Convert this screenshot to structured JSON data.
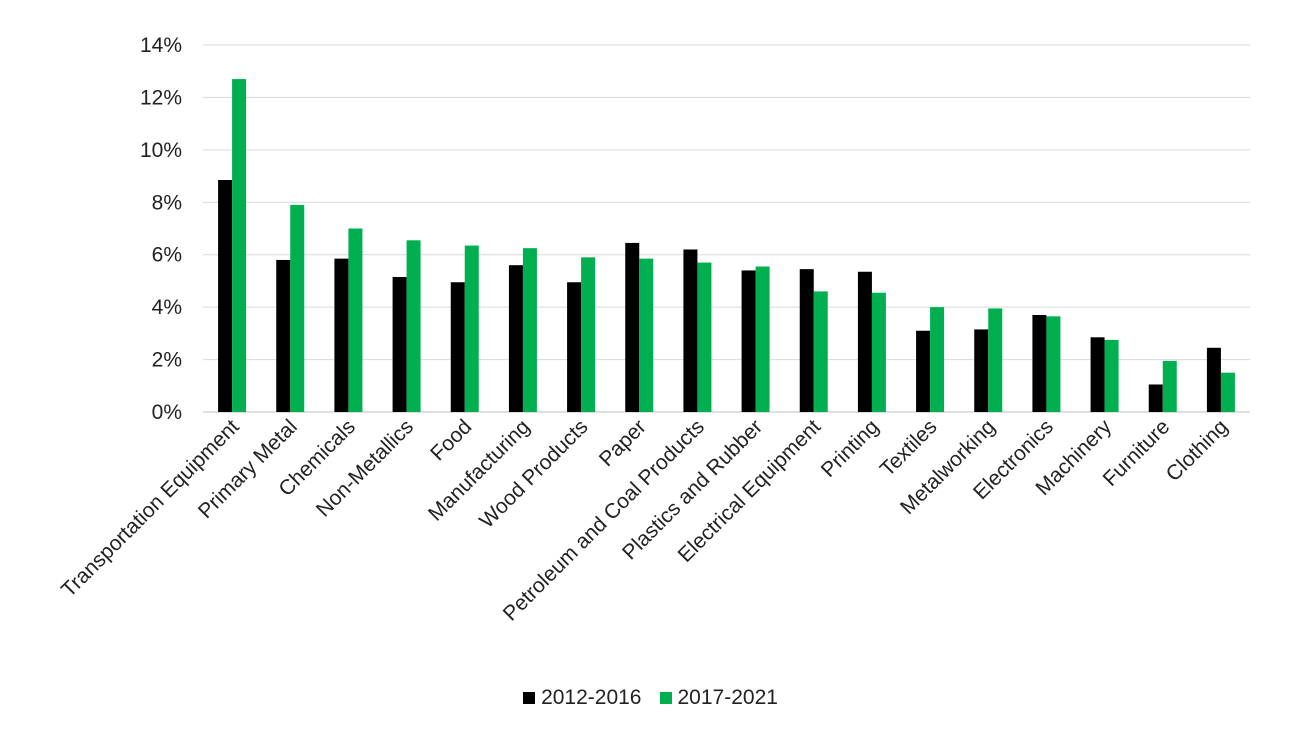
{
  "chart_data": {
    "type": "bar",
    "title": "",
    "xlabel": "",
    "ylabel": "",
    "ylim": [
      0,
      14
    ],
    "yticks": [
      "0%",
      "2%",
      "4%",
      "6%",
      "8%",
      "10%",
      "12%",
      "14%"
    ],
    "ytick_values": [
      0,
      2,
      4,
      6,
      8,
      10,
      12,
      14
    ],
    "grid": true,
    "legend_position": "bottom",
    "categories": [
      "Transportation Equipment",
      "Primary Metal",
      "Chemicals",
      "Non-Metallics",
      "Food",
      "Manufacturing",
      "Wood Products",
      "Paper",
      "Petroleum and Coal Products",
      "Plastics and Rubber",
      "Electrical Equipment",
      "Printing",
      "Textiles",
      "Metalworking",
      "Electronics",
      "Machinery",
      "Furniture",
      "Clothing"
    ],
    "series": [
      {
        "name": "2012-2016",
        "color": "#000000",
        "values": [
          8.85,
          5.8,
          5.85,
          5.15,
          4.95,
          5.6,
          4.95,
          6.45,
          6.2,
          5.4,
          5.45,
          5.35,
          3.1,
          3.15,
          3.7,
          2.85,
          1.05,
          2.45
        ]
      },
      {
        "name": "2017-2021",
        "color": "#00B050",
        "values": [
          12.7,
          7.9,
          7.0,
          6.55,
          6.35,
          6.25,
          5.9,
          5.85,
          5.7,
          5.55,
          4.6,
          4.55,
          4.0,
          3.95,
          3.65,
          2.75,
          1.95,
          1.5
        ]
      }
    ]
  }
}
